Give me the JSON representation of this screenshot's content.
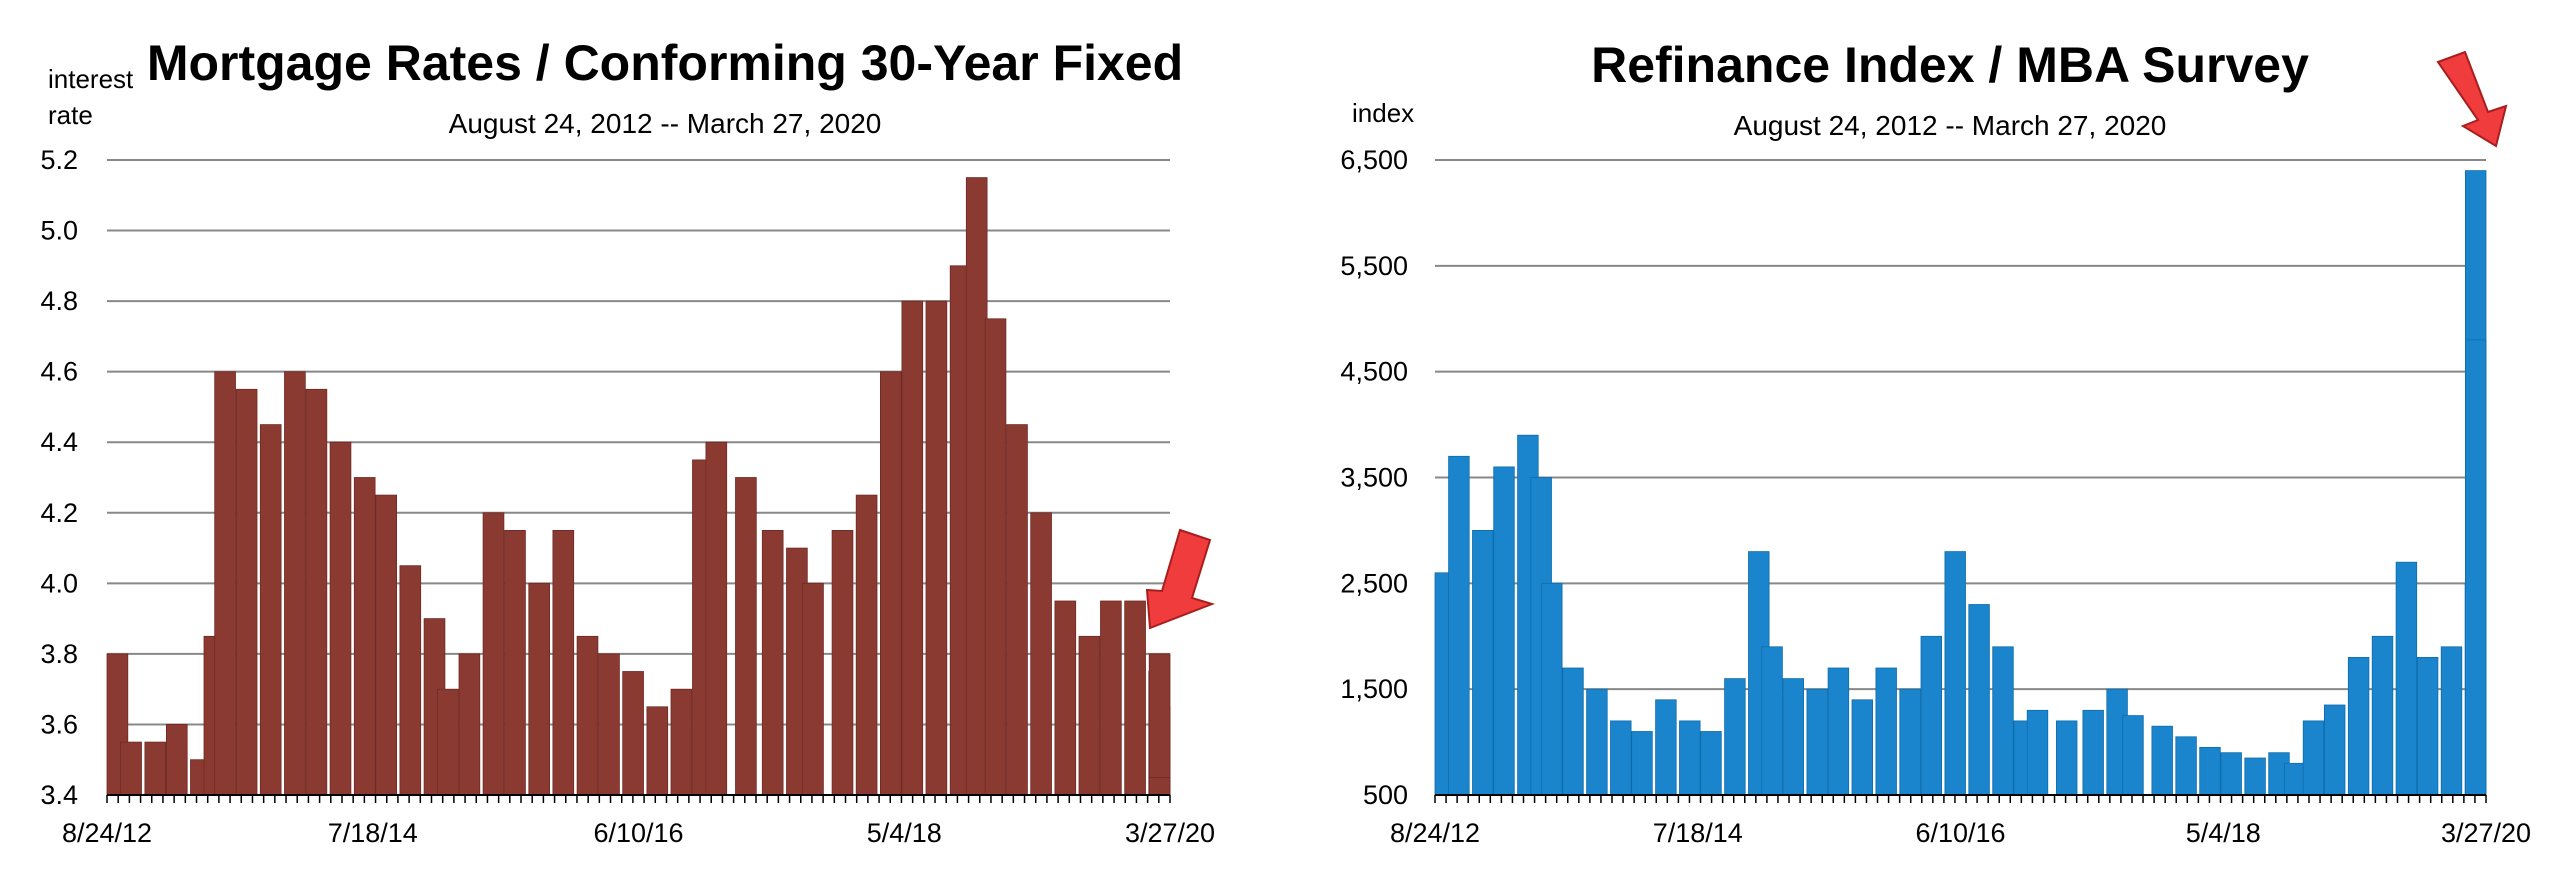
{
  "colors": {
    "mortgage_fill": "#8b3a32",
    "mortgage_stroke": "#6e2a24",
    "refi_fill": "#1a85cc",
    "refi_stroke": "#0f6cab",
    "grid": "#888888",
    "arrow": "#f03c3c"
  },
  "chart_data": [
    {
      "type": "bar",
      "title": "Mortgage Rates / Conforming 30-Year Fixed",
      "subtitle": "August 24, 2012 -- March 27, 2020",
      "ylabel_line1": "interest",
      "ylabel_line2": "rate",
      "ylim": [
        3.4,
        5.2
      ],
      "yticks": [
        3.4,
        3.6,
        3.8,
        4.0,
        4.2,
        4.4,
        4.6,
        4.8,
        5.0,
        5.2
      ],
      "ytick_labels": [
        "3.4",
        "3.6",
        "3.8",
        "4.0",
        "4.2",
        "4.4",
        "4.6",
        "4.8",
        "5.0",
        "5.2"
      ],
      "xtick_labels": [
        "8/24/12",
        "7/18/14",
        "6/10/16",
        "5/4/18",
        "3/27/20"
      ],
      "grid": true,
      "annotation": "arrow pointing at final value",
      "x": [
        "2012-08-24",
        "2012-10-26",
        "2012-12-28",
        "2013-02-22",
        "2013-04-26",
        "2013-05-31",
        "2013-06-28",
        "2013-08-23",
        "2013-10-25",
        "2013-12-27",
        "2014-02-21",
        "2014-04-25",
        "2014-06-27",
        "2014-08-22",
        "2014-10-24",
        "2014-12-26",
        "2015-01-30",
        "2015-03-27",
        "2015-05-29",
        "2015-07-24",
        "2015-09-25",
        "2015-11-27",
        "2016-01-29",
        "2016-03-25",
        "2016-05-27",
        "2016-07-29",
        "2016-09-30",
        "2016-11-25",
        "2016-12-30",
        "2017-03-17",
        "2017-05-26",
        "2017-07-28",
        "2017-09-08",
        "2017-11-24",
        "2018-01-26",
        "2018-03-30",
        "2018-05-25",
        "2018-07-27",
        "2018-09-28",
        "2018-11-09",
        "2018-12-28",
        "2019-02-22",
        "2019-04-26",
        "2019-06-28",
        "2019-08-30",
        "2019-10-25",
        "2019-12-27",
        "2020-02-28",
        "2020-03-06",
        "2020-03-20",
        "2020-03-27"
      ],
      "values": [
        3.8,
        3.55,
        3.55,
        3.6,
        3.5,
        3.85,
        4.6,
        4.55,
        4.45,
        4.6,
        4.55,
        4.4,
        4.3,
        4.25,
        4.05,
        3.9,
        3.7,
        3.8,
        4.2,
        4.15,
        4.0,
        4.15,
        3.85,
        3.8,
        3.75,
        3.65,
        3.7,
        4.35,
        4.4,
        4.3,
        4.15,
        4.1,
        4.0,
        4.15,
        4.25,
        4.6,
        4.8,
        4.8,
        4.9,
        5.15,
        4.75,
        4.45,
        4.2,
        3.95,
        3.85,
        3.95,
        3.95,
        3.75,
        3.65,
        3.8,
        3.45
      ]
    },
    {
      "type": "bar",
      "title": "Refinance Index / MBA Survey",
      "subtitle": "August 24, 2012 -- March 27, 2020",
      "ylabel": "index",
      "ylim": [
        500,
        6500
      ],
      "yticks": [
        500,
        1500,
        2500,
        3500,
        4500,
        5500,
        6500
      ],
      "ytick_labels": [
        "500",
        "1,500",
        "2,500",
        "3,500",
        "4,500",
        "5,500",
        "6,500"
      ],
      "xtick_labels": [
        "8/24/12",
        "7/18/14",
        "6/10/16",
        "5/4/18",
        "3/27/20"
      ],
      "grid": true,
      "annotation": "arrow pointing at peak value",
      "x": [
        "2012-08-24",
        "2012-10-26",
        "2012-12-28",
        "2013-02-22",
        "2013-04-26",
        "2013-05-31",
        "2013-06-28",
        "2013-08-23",
        "2013-10-25",
        "2013-12-27",
        "2014-02-21",
        "2014-04-25",
        "2014-06-27",
        "2014-08-22",
        "2014-10-24",
        "2014-12-26",
        "2015-01-30",
        "2015-03-27",
        "2015-05-29",
        "2015-07-24",
        "2015-09-25",
        "2015-11-27",
        "2016-01-29",
        "2016-03-25",
        "2016-05-27",
        "2016-07-29",
        "2016-09-30",
        "2016-11-25",
        "2016-12-30",
        "2017-03-17",
        "2017-05-26",
        "2017-07-28",
        "2017-09-08",
        "2017-11-24",
        "2018-01-26",
        "2018-03-30",
        "2018-05-25",
        "2018-07-27",
        "2018-09-28",
        "2018-11-09",
        "2018-12-28",
        "2019-02-22",
        "2019-04-26",
        "2019-06-28",
        "2019-08-30",
        "2019-10-25",
        "2019-12-27",
        "2020-02-28",
        "2020-03-06",
        "2020-03-20",
        "2020-03-27"
      ],
      "values": [
        2600,
        3700,
        3000,
        3600,
        3900,
        3500,
        2500,
        1700,
        1500,
        1200,
        1100,
        1400,
        1200,
        1100,
        1600,
        2800,
        1900,
        1600,
        1500,
        1700,
        1400,
        1700,
        1500,
        2000,
        2800,
        2300,
        1900,
        1200,
        1300,
        1200,
        1300,
        1500,
        1250,
        1150,
        1050,
        950,
        900,
        850,
        900,
        800,
        1200,
        1350,
        1800,
        2000,
        2700,
        1800,
        1900,
        2500,
        3500,
        6400,
        4800
      ]
    }
  ]
}
